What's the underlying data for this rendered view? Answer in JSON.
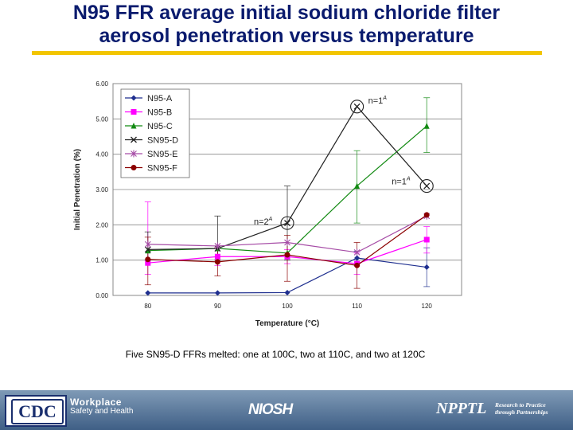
{
  "slide": {
    "title_line1": "N95 FFR average initial sodium chloride filter",
    "title_line2": "aerosol penetration versus temperature",
    "caption": "Five SN95-D FFRs melted: one at 100C, two at 110C, and two at 120C"
  },
  "footer": {
    "cdc": "CDC",
    "workplace_line1": "Workplace",
    "workplace_line2": "Safety and Health",
    "niosh": "NIOSH",
    "npptl": "NPPTL",
    "npptl_line1": "Research to Practice",
    "npptl_line2": "through Partnerships",
    "colors": {
      "title": "#0a1b6e",
      "rule": "#f2c500",
      "band": "#4f6f94"
    }
  },
  "chart_data": {
    "type": "line",
    "xlabel": "Temperature (°C)",
    "ylabel": "Initial Penetration (%)",
    "categories": [
      "80",
      "90",
      "100",
      "110",
      "120"
    ],
    "yticks": [
      "0.00",
      "1.00",
      "2.00",
      "3.00",
      "4.00",
      "5.00",
      "6.00"
    ],
    "ylim": [
      0,
      6
    ],
    "grid": true,
    "legend_position": "top-left",
    "series": [
      {
        "name": "N95-A",
        "color": "#1f2f8f",
        "marker": "diamond",
        "values": [
          0.07,
          0.07,
          0.08,
          1.06,
          0.8
        ]
      },
      {
        "name": "N95-B",
        "color": "#ff00ff",
        "marker": "square",
        "values": [
          0.92,
          1.1,
          1.1,
          0.9,
          1.58
        ]
      },
      {
        "name": "N95-C",
        "color": "#128a12",
        "marker": "triangle",
        "values": [
          1.27,
          1.33,
          1.2,
          3.1,
          4.8
        ]
      },
      {
        "name": "SN95-D",
        "color": "#222222",
        "marker": "x",
        "values": [
          1.3,
          1.33,
          2.05,
          5.35,
          3.1
        ]
      },
      {
        "name": "SN95-E",
        "color": "#a64ca6",
        "marker": "star",
        "values": [
          1.45,
          1.4,
          1.5,
          1.22,
          2.25
        ]
      },
      {
        "name": "SN95-F",
        "color": "#8b0000",
        "marker": "circle",
        "values": [
          1.02,
          0.95,
          1.15,
          0.85,
          2.28
        ]
      }
    ],
    "error_bars": [
      {
        "series": "N95-A",
        "low": [
          null,
          null,
          null,
          0.9,
          0.25
        ],
        "high": [
          null,
          null,
          null,
          1.25,
          1.35
        ]
      },
      {
        "series": "N95-B",
        "low": [
          0.6,
          0.85,
          0.9,
          0.6,
          1.2
        ],
        "high": [
          2.65,
          1.35,
          1.3,
          1.2,
          1.95
        ]
      },
      {
        "series": "N95-C",
        "low": [
          null,
          null,
          null,
          2.05,
          4.05
        ],
        "high": [
          null,
          null,
          null,
          4.1,
          5.6
        ]
      },
      {
        "series": "SN95-D",
        "low": [
          1.0,
          1.0,
          1.0,
          null,
          null
        ],
        "high": [
          1.8,
          2.25,
          3.1,
          null,
          null
        ]
      },
      {
        "series": "SN95-F",
        "low": [
          0.3,
          0.55,
          0.4,
          0.2,
          null
        ],
        "high": [
          1.65,
          1.35,
          1.7,
          1.5,
          null
        ]
      }
    ],
    "annotations": [
      {
        "text": "n=2",
        "sup": "A",
        "x": "100",
        "y": 2.05
      },
      {
        "text": "n=1",
        "sup": "A",
        "x": "110",
        "y": 5.35
      },
      {
        "text": "n=1",
        "sup": "A",
        "x": "120",
        "y": 3.1
      }
    ]
  }
}
